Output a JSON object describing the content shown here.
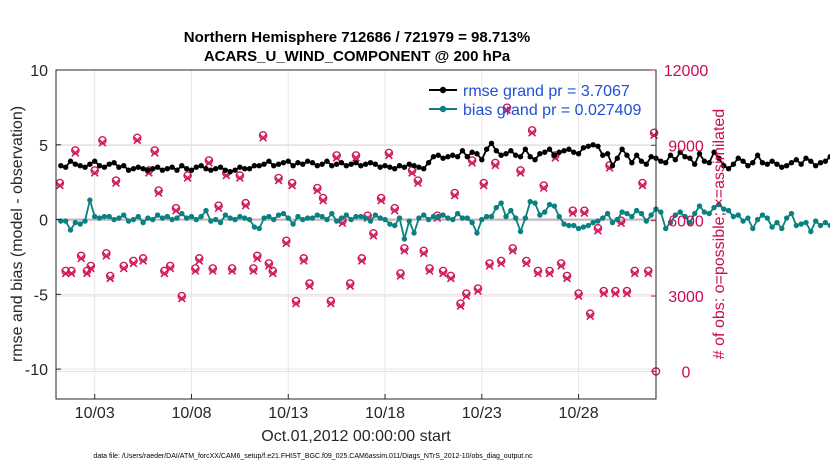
{
  "chart_data": {
    "type": "line",
    "title_line1": "Northern Hemisphere 712686 / 721979 = 98.713%",
    "title_line2": "ACARS_U_WIND_COMPONENT @ 200 hPa",
    "xlabel": "Oct.01,2012 00:00:00 start",
    "ylabel_left": "rmse and bias (model - observation)",
    "ylabel_right": "# of obs: o=possible; ×=assimilated",
    "x_tick_labels": [
      "10/03",
      "10/08",
      "10/13",
      "10/18",
      "10/23",
      "10/28"
    ],
    "x_tick_days": [
      3,
      8,
      13,
      18,
      23,
      28
    ],
    "xlim_days": [
      1.0,
      32.0
    ],
    "ylim_left": [
      -12,
      10
    ],
    "yticks_left": [
      10,
      5,
      0,
      -5,
      -10
    ],
    "ylim_right": [
      -1100,
      12000
    ],
    "yticks_right": [
      12000,
      9000,
      6000,
      3000,
      0
    ],
    "grid": true,
    "legend_position": "top-right",
    "legend": [
      {
        "name": "rmse grand pr = 3.7067",
        "color": "#000000"
      },
      {
        "name": "bias grand pr = 0.027409",
        "color": "#0a8080"
      }
    ],
    "footnote": "data file: /Users/raeder/DAI/ATM_forcXX/CAM6_setup/f.e21.FHIST_BGC.f09_025.CAM6assim.011/Diags_NTrS_2012-10/obs_diag_output.nc",
    "colors": {
      "rmse": "#000000",
      "bias": "#0a8080",
      "obs": "#d1185c",
      "zero": "#bbbbbb"
    },
    "series": [
      {
        "name": "rmse",
        "axis": "left",
        "start_day": 1.25,
        "step_days": 0.25,
        "values": [
          3.6,
          3.5,
          3.9,
          3.7,
          3.6,
          3.5,
          3.7,
          3.9,
          3.6,
          3.5,
          3.7,
          3.8,
          3.5,
          3.6,
          3.3,
          3.4,
          3.5,
          3.4,
          3.3,
          3.4,
          3.5,
          3.3,
          3.4,
          3.5,
          3.3,
          3.6,
          3.4,
          3.3,
          3.5,
          3.6,
          3.4,
          3.3,
          3.4,
          3.5,
          3.3,
          3.2,
          3.3,
          3.5,
          3.4,
          3.4,
          3.6,
          3.6,
          3.7,
          3.9,
          3.6,
          3.7,
          3.8,
          3.9,
          3.6,
          3.8,
          3.7,
          3.9,
          3.8,
          3.6,
          3.7,
          3.9,
          3.6,
          3.7,
          3.8,
          3.6,
          3.7,
          3.8,
          3.6,
          3.7,
          3.8,
          3.7,
          3.5,
          3.6,
          3.5,
          3.4,
          3.6,
          3.5,
          3.7,
          3.6,
          3.5,
          3.4,
          3.8,
          4.2,
          4.3,
          4.1,
          4.2,
          4.3,
          4.2,
          4.6,
          4.2,
          4.5,
          4.4,
          4.0,
          4.7,
          5.1,
          4.6,
          4.3,
          4.4,
          4.6,
          4.3,
          4.2,
          4.7,
          4.2,
          4.0,
          4.4,
          4.5,
          4.7,
          4.3,
          4.5,
          4.6,
          4.7,
          4.5,
          4.4,
          4.8,
          4.9,
          5.0,
          4.9,
          4.3,
          4.4,
          3.6,
          4.1,
          4.7,
          4.3,
          3.8,
          4.3,
          3.9,
          3.7,
          4.2,
          4.1,
          3.9,
          3.8,
          4.3,
          4.0,
          4.5,
          4.2,
          4.1,
          3.7,
          4.4,
          3.9,
          3.8,
          4.5,
          4.1,
          3.6,
          3.4,
          3.7,
          4.1,
          3.9,
          3.6,
          3.8,
          4.3,
          3.8,
          3.7,
          3.9,
          3.7,
          3.5,
          3.6,
          3.8,
          4.0,
          3.7,
          4.1,
          3.9,
          3.6,
          3.8,
          3.9,
          4.2,
          3.7,
          3.8,
          4.0,
          3.9,
          4.0,
          3.8,
          4.2,
          4.0,
          3.9,
          3.8,
          4.1,
          4.2,
          3.9,
          4.0,
          4.3,
          4.1,
          4.2,
          3.9,
          3.8,
          4.1,
          4.0,
          4.2,
          3.9,
          4.1,
          4.0,
          4.2,
          4.1,
          3.9,
          4.0,
          3.8,
          4.2,
          4.1,
          3.9,
          4.0,
          4.2,
          4.1,
          3.9,
          4.3,
          4.0,
          4.2,
          3.9,
          4.0,
          4.1,
          3.9,
          3.8,
          4.0
        ]
      },
      {
        "name": "bias",
        "axis": "left",
        "start_day": 1.25,
        "step_days": 0.25,
        "values": [
          -0.1,
          -0.1,
          -0.7,
          -0.2,
          -0.3,
          -0.1,
          1.3,
          0.2,
          0.1,
          0.2,
          0.2,
          0.0,
          0.1,
          0.3,
          -0.1,
          0.0,
          0.2,
          -0.2,
          0.1,
          0.0,
          0.3,
          0.1,
          0.2,
          0.0,
          0.1,
          0.4,
          0.1,
          0.2,
          0.0,
          0.2,
          0.6,
          -0.1,
          0.0,
          -0.2,
          0.3,
          0.1,
          0.0,
          0.2,
          0.1,
          0.0,
          -0.5,
          -0.6,
          0.1,
          0.2,
          0.0,
          0.3,
          0.4,
          0.1,
          -0.3,
          0.2,
          0.0,
          0.1,
          0.1,
          0.3,
          0.2,
          0.0,
          0.4,
          -0.1,
          0.1,
          0.3,
          0.0,
          0.2,
          0.2,
          0.1,
          -0.1,
          0.3,
          0.1,
          0.0,
          -0.3,
          -0.4,
          0.1,
          -1.3,
          -0.1,
          -0.9,
          0.1,
          0.3,
          0.0,
          0.2,
          0.2,
          0.3,
          0.1,
          0.0,
          0.4,
          0.1,
          0.1,
          -0.2,
          -0.9,
          0.0,
          0.2,
          0.2,
          0.8,
          1.1,
          0.2,
          0.6,
          0.1,
          -0.8,
          0.1,
          1.2,
          1.1,
          0.3,
          0.5,
          1.0,
          0.9,
          0.2,
          -0.3,
          -0.4,
          -0.4,
          -0.6,
          -0.5,
          -0.4,
          -0.2,
          -0.1,
          0.1,
          0.4,
          -0.2,
          0.0,
          0.5,
          0.4,
          0.2,
          0.6,
          0.4,
          -0.1,
          0.3,
          0.7,
          0.5,
          -0.6,
          -0.2,
          0.3,
          0.5,
          0.2,
          -0.2,
          0.4,
          0.9,
          0.5,
          0.4,
          0.8,
          1.0,
          0.7,
          0.6,
          0.2,
          0.3,
          -0.1,
          0.1,
          -0.6,
          0.0,
          0.3,
          0.1,
          -0.5,
          -0.2,
          -0.6,
          0.1,
          0.4,
          -0.4,
          -0.3,
          -0.2,
          -0.8,
          -0.1,
          -0.4,
          -0.2,
          -0.4,
          0.2,
          -0.7,
          0.1,
          0.6,
          0.3,
          0.7,
          0.4,
          0.0,
          0.2,
          -0.6,
          0.3,
          0.0,
          0.6,
          0.2,
          0.3,
          -0.4,
          1.2,
          0.5,
          0.8,
          0.4,
          0.3,
          0.4,
          0.6,
          0.5,
          0.5,
          0.3,
          0.2,
          -0.5,
          0.1,
          0.3,
          -0.6,
          -0.6,
          0.4,
          0.8,
          0.7,
          0.4,
          0.5,
          0.3
        ]
      },
      {
        "name": "obs_possible",
        "axis": "right",
        "marker": "o",
        "x": [
          1.2,
          1.5,
          1.8,
          2.0,
          2.3,
          2.6,
          2.8,
          3.0,
          3.4,
          3.6,
          3.8,
          4.1,
          4.5,
          5.0,
          5.2,
          5.5,
          5.8,
          6.1,
          6.3,
          6.6,
          6.9,
          7.2,
          7.5,
          7.8,
          8.2,
          8.4,
          8.9,
          9.1,
          9.4,
          9.8,
          10.1,
          10.5,
          10.8,
          11.2,
          11.4,
          11.7,
          12.0,
          12.2,
          12.5,
          12.9,
          13.2,
          13.4,
          13.8,
          14.1,
          14.5,
          14.8,
          15.2,
          15.5,
          15.8,
          16.2,
          16.5,
          16.8,
          17.1,
          17.4,
          17.8,
          18.2,
          18.5,
          18.8,
          19.0,
          19.4,
          19.7,
          20.0,
          20.3,
          20.7,
          21.0,
          21.4,
          21.6,
          21.9,
          22.2,
          22.5,
          22.8,
          23.1,
          23.4,
          23.7,
          24.0,
          24.3,
          24.6,
          25.0,
          25.3,
          25.6,
          25.9,
          26.2,
          26.5,
          26.8,
          27.1,
          27.4,
          27.7,
          28.0,
          28.3,
          28.6,
          29.0,
          29.3,
          29.6,
          29.9,
          30.2,
          30.5,
          30.9,
          31.3,
          31.6,
          31.9
        ],
        "values": [
          7500,
          4000,
          4000,
          8800,
          4600,
          4000,
          4200,
          8000,
          9200,
          4700,
          3800,
          7600,
          4200,
          4400,
          9300,
          4500,
          8000,
          8800,
          7200,
          4000,
          4200,
          6500,
          3000,
          7800,
          4100,
          4500,
          8400,
          4100,
          6600,
          7900,
          4100,
          7800,
          6700,
          4100,
          4600,
          9400,
          4300,
          4000,
          7700,
          5200,
          7500,
          2800,
          4500,
          3500,
          7300,
          6900,
          2800,
          8600,
          6000,
          3500,
          8600,
          4500,
          6200,
          5500,
          6900,
          8700,
          6500,
          3900,
          4900,
          8000,
          7600,
          4800,
          4100,
          6200,
          4000,
          3800,
          7100,
          2700,
          3100,
          8400,
          3300,
          7500,
          4300,
          8300,
          4400,
          10500,
          4900,
          8000,
          4400,
          9600,
          4000,
          7400,
          4000,
          8600,
          4300,
          3800,
          6400,
          3100,
          6400,
          2300,
          5700,
          3200,
          8200,
          3200,
          6000,
          3200,
          4000,
          7500,
          4000,
          9500
        ]
      },
      {
        "name": "obs_assimilated",
        "axis": "right",
        "marker": "x",
        "x": [
          1.2,
          1.5,
          1.8,
          2.0,
          2.3,
          2.6,
          2.8,
          3.0,
          3.4,
          3.6,
          3.8,
          4.1,
          4.5,
          5.0,
          5.2,
          5.5,
          5.8,
          6.1,
          6.3,
          6.6,
          6.9,
          7.2,
          7.5,
          7.8,
          8.2,
          8.4,
          8.9,
          9.1,
          9.4,
          9.8,
          10.1,
          10.5,
          10.8,
          11.2,
          11.4,
          11.7,
          12.0,
          12.2,
          12.5,
          12.9,
          13.2,
          13.4,
          13.8,
          14.1,
          14.5,
          14.8,
          15.2,
          15.5,
          15.8,
          16.2,
          16.5,
          16.8,
          17.1,
          17.4,
          17.8,
          18.2,
          18.5,
          18.8,
          19.0,
          19.4,
          19.7,
          20.0,
          20.3,
          20.7,
          21.0,
          21.4,
          21.6,
          21.9,
          22.2,
          22.5,
          22.8,
          23.1,
          23.4,
          23.7,
          24.0,
          24.3,
          24.6,
          25.0,
          25.3,
          25.6,
          25.9,
          26.2,
          26.5,
          26.8,
          27.1,
          27.4,
          27.7,
          28.0,
          28.3,
          28.6,
          29.0,
          29.3,
          29.6,
          29.9,
          30.2,
          30.5,
          30.9,
          31.3,
          31.6,
          31.9
        ],
        "values": [
          7400,
          3900,
          3900,
          8700,
          4500,
          3900,
          4100,
          7900,
          9100,
          4600,
          3700,
          7500,
          4100,
          4300,
          9200,
          4400,
          7900,
          8700,
          7100,
          3900,
          4100,
          6400,
          2900,
          7700,
          4000,
          4400,
          8300,
          4000,
          6500,
          7800,
          4000,
          7700,
          6600,
          4000,
          4500,
          9300,
          4200,
          3900,
          7600,
          5100,
          7400,
          2700,
          4400,
          3400,
          7200,
          6800,
          2700,
          8500,
          5900,
          3400,
          8500,
          4400,
          6100,
          5400,
          6800,
          8600,
          6400,
          3800,
          4800,
          7900,
          7500,
          4700,
          4000,
          6100,
          3900,
          3700,
          7000,
          2600,
          3000,
          8300,
          3200,
          7400,
          4200,
          8200,
          4300,
          10400,
          4800,
          7900,
          4300,
          9500,
          3900,
          7300,
          3900,
          8500,
          4200,
          3700,
          6300,
          3000,
          6300,
          2200,
          5600,
          3100,
          8100,
          3100,
          5900,
          3100,
          3900,
          7400,
          3900,
          9400
        ]
      },
      {
        "name": "obs_end_marker",
        "axis": "right",
        "marker": "o",
        "x": [
          32.0
        ],
        "values": [
          0
        ]
      }
    ]
  }
}
